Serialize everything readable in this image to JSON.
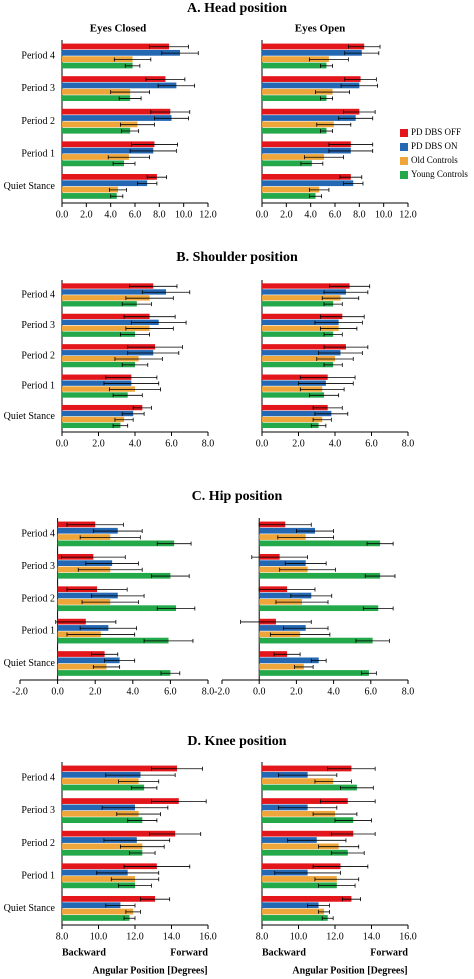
{
  "panel_titles": [
    "A. Head position",
    "B. Shoulder position",
    "C. Hip position",
    "D. Knee position"
  ],
  "column_titles": [
    "Eyes Closed",
    "Eyes Open"
  ],
  "direction_labels": [
    "Backward",
    "Forward"
  ],
  "x_label": "Angular Position [Degrees]",
  "chart_data": [
    {
      "type": "bar",
      "orientation": "horizontal",
      "categories": [
        "Period 4",
        "Period 3",
        "Period 2",
        "Period 1",
        "Quiet Stance"
      ],
      "series": [
        {
          "name": "PD DBS OFF",
          "color": "#e3161c",
          "values": [
            8.8,
            8.5,
            8.9,
            7.6,
            7.8
          ],
          "errors": [
            1.6,
            1.6,
            1.6,
            1.9,
            0.8
          ]
        },
        {
          "name": "PD DBS ON",
          "color": "#2468b4",
          "values": [
            9.7,
            9.4,
            9.0,
            7.5,
            7.0
          ],
          "errors": [
            1.5,
            1.5,
            1.4,
            1.9,
            0.8
          ]
        },
        {
          "name": "Old Controls",
          "color": "#eea63a",
          "values": [
            5.8,
            5.6,
            6.2,
            5.5,
            4.6
          ],
          "errors": [
            1.5,
            1.6,
            1.4,
            1.7,
            0.7
          ]
        },
        {
          "name": "Young Controls",
          "color": "#23a84a",
          "values": [
            5.8,
            5.6,
            5.6,
            5.1,
            4.5
          ],
          "errors": [
            0.6,
            0.9,
            0.7,
            0.9,
            0.5
          ]
        }
      ],
      "xlim": [
        0,
        12
      ],
      "xticks": [
        {
          "value": 0,
          "label": "0.0"
        },
        {
          "value": 2,
          "label": "2.0"
        },
        {
          "value": 4,
          "label": "4.0"
        },
        {
          "value": 6,
          "label": "6.0"
        },
        {
          "value": 8,
          "label": "8.0"
        },
        {
          "value": 10,
          "label": "10.0"
        },
        {
          "value": 12,
          "label": "12.0"
        }
      ]
    },
    {
      "type": "bar",
      "orientation": "horizontal",
      "series": [
        {
          "color": "#e3161c",
          "values": [
            8.4,
            8.1,
            8.0,
            7.3,
            7.3
          ],
          "errors": [
            1.3,
            1.3,
            1.3,
            1.8,
            0.9
          ]
        },
        {
          "color": "#2468b4",
          "values": [
            8.2,
            8.0,
            7.7,
            7.3,
            7.5
          ],
          "errors": [
            1.4,
            1.5,
            1.4,
            1.8,
            0.8
          ]
        },
        {
          "color": "#eea63a",
          "values": [
            5.5,
            5.8,
            5.9,
            5.1,
            4.7
          ],
          "errors": [
            1.6,
            1.4,
            1.4,
            1.6,
            0.8
          ]
        },
        {
          "color": "#23a84a",
          "values": [
            5.3,
            5.3,
            5.3,
            4.1,
            4.4
          ],
          "errors": [
            0.5,
            0.5,
            0.5,
            0.9,
            0.5
          ]
        }
      ],
      "xlim": [
        0,
        12
      ],
      "xticks": [
        {
          "value": 0,
          "label": "0.0"
        },
        {
          "value": 2,
          "label": "2.0"
        },
        {
          "value": 4,
          "label": "4.0"
        },
        {
          "value": 6,
          "label": "6.0"
        },
        {
          "value": 8,
          "label": "8.0"
        },
        {
          "value": 10,
          "label": "10.0"
        },
        {
          "value": 12,
          "label": "12.0"
        }
      ]
    },
    {
      "type": "bar",
      "orientation": "horizontal",
      "categories": [
        "Period 4",
        "Period 3",
        "Period 2",
        "Period 1",
        "Quiet Stance"
      ],
      "series": [
        {
          "color": "#e3161c",
          "values": [
            5.0,
            4.8,
            5.1,
            3.8,
            4.4
          ],
          "errors": [
            1.3,
            1.4,
            1.5,
            1.4,
            0.5
          ]
        },
        {
          "color": "#2468b4",
          "values": [
            5.7,
            5.3,
            5.0,
            3.8,
            3.9
          ],
          "errors": [
            1.3,
            1.5,
            1.4,
            1.5,
            0.6
          ]
        },
        {
          "color": "#eea63a",
          "values": [
            4.8,
            4.8,
            4.2,
            4.0,
            3.4
          ],
          "errors": [
            1.3,
            1.3,
            1.3,
            1.4,
            0.5
          ]
        },
        {
          "color": "#23a84a",
          "values": [
            4.1,
            4.0,
            4.0,
            3.6,
            3.2
          ],
          "errors": [
            0.8,
            0.8,
            0.7,
            0.8,
            0.4
          ]
        }
      ],
      "xlim": [
        0,
        8
      ],
      "xticks": [
        {
          "value": 0,
          "label": "0.0"
        },
        {
          "value": 2,
          "label": "2.0"
        },
        {
          "value": 4,
          "label": "4.0"
        },
        {
          "value": 6,
          "label": "6.0"
        },
        {
          "value": 8,
          "label": "8.0"
        }
      ]
    },
    {
      "type": "bar",
      "orientation": "horizontal",
      "series": [
        {
          "color": "#e3161c",
          "values": [
            4.8,
            4.4,
            4.6,
            3.6,
            3.6
          ],
          "errors": [
            1.1,
            1.2,
            1.2,
            1.5,
            0.8
          ]
        },
        {
          "color": "#2468b4",
          "values": [
            4.6,
            4.2,
            4.3,
            3.5,
            3.8
          ],
          "errors": [
            1.2,
            1.3,
            1.2,
            1.5,
            0.9
          ]
        },
        {
          "color": "#eea63a",
          "values": [
            4.3,
            4.2,
            4.0,
            3.3,
            3.3
          ],
          "errors": [
            1.0,
            1.0,
            1.0,
            1.2,
            0.5
          ]
        },
        {
          "color": "#23a84a",
          "values": [
            3.9,
            3.9,
            3.9,
            3.4,
            3.1
          ],
          "errors": [
            0.5,
            0.5,
            0.5,
            0.8,
            0.4
          ]
        }
      ],
      "xlim": [
        0,
        8
      ],
      "xticks": [
        {
          "value": 0,
          "label": "0.0"
        },
        {
          "value": 2,
          "label": "2.0"
        },
        {
          "value": 4,
          "label": "4.0"
        },
        {
          "value": 6,
          "label": "6.0"
        },
        {
          "value": 8,
          "label": "8.0"
        }
      ]
    },
    {
      "type": "bar",
      "orientation": "horizontal",
      "categories": [
        "Period 4",
        "Period 3",
        "Period 2",
        "Period 1",
        "Quiet Stance"
      ],
      "series": [
        {
          "color": "#e3161c",
          "values": [
            2.0,
            1.9,
            2.1,
            1.5,
            2.5
          ],
          "errors": [
            1.5,
            1.7,
            1.6,
            1.6,
            0.7
          ]
        },
        {
          "color": "#2468b4",
          "values": [
            3.2,
            2.9,
            3.2,
            2.7,
            3.3
          ],
          "errors": [
            1.3,
            1.4,
            1.4,
            1.5,
            0.8
          ]
        },
        {
          "color": "#eea63a",
          "values": [
            2.8,
            2.8,
            2.8,
            2.3,
            2.6
          ],
          "errors": [
            1.6,
            1.7,
            1.5,
            1.8,
            0.7
          ]
        },
        {
          "color": "#23a84a",
          "values": [
            6.2,
            6.0,
            6.3,
            5.9,
            6.0
          ],
          "errors": [
            0.9,
            1.0,
            1.0,
            1.3,
            0.5
          ]
        }
      ],
      "xlim": [
        -2,
        8
      ],
      "xticks": [
        {
          "value": -2,
          "label": "-2.0"
        },
        {
          "value": 0,
          "label": "0.0"
        },
        {
          "value": 2,
          "label": "2.0"
        },
        {
          "value": 4,
          "label": "4.0"
        },
        {
          "value": 6,
          "label": "6.0"
        },
        {
          "value": 8,
          "label": "8.0"
        }
      ]
    },
    {
      "type": "bar",
      "orientation": "horizontal",
      "series": [
        {
          "color": "#e3161c",
          "values": [
            1.4,
            1.1,
            1.5,
            0.9,
            1.5
          ],
          "errors": [
            1.4,
            1.5,
            1.5,
            1.9,
            0.7
          ]
        },
        {
          "color": "#2468b4",
          "values": [
            3.0,
            2.5,
            2.8,
            2.5,
            3.2
          ],
          "errors": [
            1.0,
            1.1,
            1.1,
            1.2,
            0.4
          ]
        },
        {
          "color": "#eea63a",
          "values": [
            2.5,
            2.6,
            2.3,
            2.2,
            2.4
          ],
          "errors": [
            1.5,
            1.5,
            1.4,
            1.6,
            0.5
          ]
        },
        {
          "color": "#23a84a",
          "values": [
            6.5,
            6.5,
            6.4,
            6.1,
            5.9
          ],
          "errors": [
            0.7,
            0.8,
            0.8,
            0.9,
            0.4
          ]
        }
      ],
      "xlim": [
        -2,
        8
      ],
      "xticks": [
        {
          "value": -2,
          "label": "-2.0"
        },
        {
          "value": 0,
          "label": "0.0"
        },
        {
          "value": 2,
          "label": "2.0"
        },
        {
          "value": 4,
          "label": "4.0"
        },
        {
          "value": 6,
          "label": "6.0"
        },
        {
          "value": 8,
          "label": "8.0"
        }
      ]
    },
    {
      "type": "bar",
      "orientation": "horizontal",
      "categories": [
        "Period 4",
        "Period 3",
        "Period 2",
        "Period 1",
        "Quiet Stance"
      ],
      "series": [
        {
          "color": "#e3161c",
          "values": [
            14.3,
            14.4,
            14.2,
            13.2,
            13.1
          ],
          "errors": [
            1.4,
            1.5,
            1.4,
            1.8,
            0.8
          ]
        },
        {
          "color": "#2468b4",
          "values": [
            12.3,
            12.0,
            12.1,
            11.6,
            11.2
          ],
          "errors": [
            1.9,
            1.8,
            1.8,
            1.7,
            0.8
          ]
        },
        {
          "color": "#eea63a",
          "values": [
            12.2,
            12.2,
            12.4,
            12.0,
            11.9
          ],
          "errors": [
            1.1,
            1.2,
            1.2,
            1.3,
            0.4
          ]
        },
        {
          "color": "#23a84a",
          "values": [
            12.5,
            12.4,
            12.4,
            12.0,
            11.7
          ],
          "errors": [
            0.7,
            0.8,
            0.7,
            0.9,
            0.3
          ]
        }
      ],
      "xlim": [
        8,
        16
      ],
      "xticks": [
        {
          "value": 8,
          "label": "8.0"
        },
        {
          "value": 10,
          "label": "10.0"
        },
        {
          "value": 12,
          "label": "12.0"
        },
        {
          "value": 14,
          "label": "14.0"
        },
        {
          "value": 16,
          "label": "16.0"
        }
      ]
    },
    {
      "type": "bar",
      "orientation": "horizontal",
      "series": [
        {
          "color": "#e3161c",
          "values": [
            12.9,
            12.7,
            13.0,
            12.3,
            12.9
          ],
          "errors": [
            1.3,
            1.5,
            1.2,
            1.5,
            0.5
          ]
        },
        {
          "color": "#2468b4",
          "values": [
            10.5,
            10.5,
            11.0,
            10.5,
            11.1
          ],
          "errors": [
            1.6,
            1.6,
            1.6,
            1.8,
            0.6
          ]
        },
        {
          "color": "#eea63a",
          "values": [
            11.9,
            12.0,
            12.2,
            12.1,
            11.4
          ],
          "errors": [
            1.0,
            1.2,
            1.1,
            1.2,
            0.3
          ]
        },
        {
          "color": "#23a84a",
          "values": [
            13.2,
            13.0,
            12.7,
            12.1,
            11.6
          ],
          "errors": [
            0.9,
            1.0,
            0.9,
            1.0,
            0.3
          ]
        }
      ],
      "xlim": [
        8,
        16
      ],
      "xticks": [
        {
          "value": 8,
          "label": "8.0"
        },
        {
          "value": 10,
          "label": "10.0"
        },
        {
          "value": 12,
          "label": "12.0"
        },
        {
          "value": 14,
          "label": "14.0"
        },
        {
          "value": 16,
          "label": "16.0"
        }
      ]
    }
  ]
}
